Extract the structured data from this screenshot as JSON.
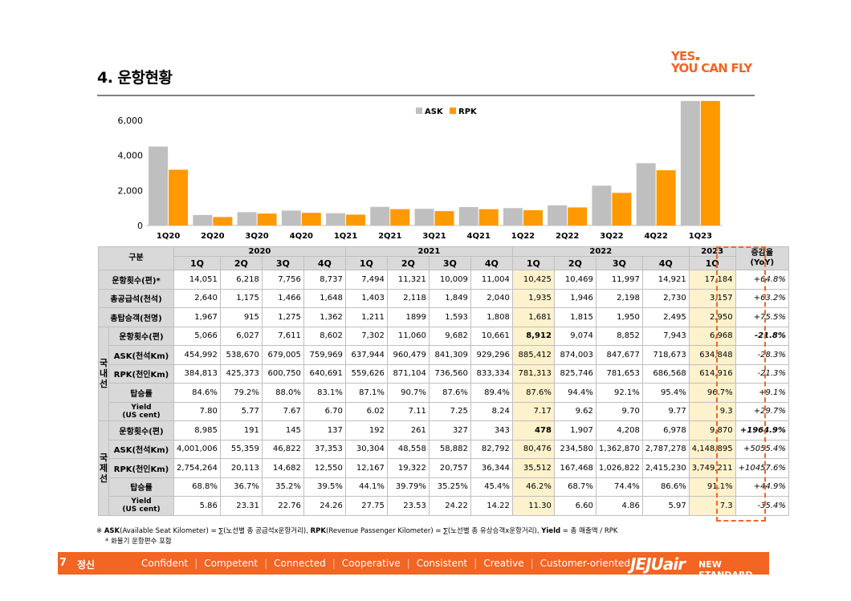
{
  "header": {
    "title": "4. 운항현황",
    "logo_line1": "YES",
    "logo_line2": "YOU CAN FLY"
  },
  "chart_data": {
    "type": "bar",
    "categories": [
      "1Q20",
      "2Q20",
      "3Q20",
      "4Q20",
      "1Q21",
      "2Q21",
      "3Q21",
      "4Q21",
      "1Q22",
      "2Q22",
      "3Q22",
      "4Q22",
      "1Q23"
    ],
    "series": [
      {
        "name": "ASK",
        "color": "#bfbfbf",
        "values": [
          4500,
          600,
          760,
          850,
          700,
          1060,
          950,
          1050,
          990,
          1150,
          2270,
          3550,
          7100
        ]
      },
      {
        "name": "RPK",
        "color": "#ff9900",
        "values": [
          3180,
          480,
          680,
          720,
          620,
          930,
          820,
          930,
          870,
          1030,
          1860,
          3150,
          7100
        ]
      }
    ],
    "yticks": [
      "0",
      "2,000",
      "4,000",
      "6,000"
    ],
    "ylim": [
      0,
      7000
    ],
    "legend": "top-center",
    "grid": false
  },
  "table": {
    "header_label": "구분",
    "yoy_header_line1": "증감율",
    "yoy_header_line2": "(YoY)",
    "years": [
      "2020",
      "2021",
      "2022",
      "2023"
    ],
    "quarters": [
      "1Q",
      "2Q",
      "3Q",
      "4Q",
      "1Q",
      "2Q",
      "3Q",
      "4Q",
      "1Q",
      "2Q",
      "3Q",
      "4Q",
      "1Q"
    ],
    "total_rows": [
      {
        "label": "운항횟수(편)*",
        "values": [
          "14,051",
          "6,218",
          "7,756",
          "8,737",
          "7,494",
          "11,321",
          "10,009",
          "11,004",
          "10,425",
          "10,469",
          "11,997",
          "14,921",
          "17,184"
        ],
        "yoy": "+64.8%"
      },
      {
        "label": "총공급석(천석)",
        "values": [
          "2,640",
          "1,175",
          "1,466",
          "1,648",
          "1,403",
          "2,118",
          "1,849",
          "2,040",
          "1,935",
          "1,946",
          "2,198",
          "2,730",
          "3,157"
        ],
        "yoy": "+63.2%"
      },
      {
        "label": "총탑승객(천명)",
        "values": [
          "1,967",
          "915",
          "1,275",
          "1,362",
          "1,211",
          "1899",
          "1,593",
          "1,808",
          "1,681",
          "1,815",
          "1,950",
          "2,495",
          "2,950"
        ],
        "yoy": "+75.5%"
      }
    ],
    "domestic": {
      "label": "국내선",
      "rows": [
        {
          "label": "운항횟수(편)",
          "values": [
            "5,066",
            "6,027",
            "7,611",
            "8,602",
            "7,302",
            "11,060",
            "9,682",
            "10,661",
            "8,912",
            "9,074",
            "8,852",
            "7,943",
            "6,968"
          ],
          "yoy": "-21.8%",
          "bold_col": 8,
          "yoy_bold": true
        },
        {
          "label": "ASK(천석Km)",
          "values": [
            "454,992",
            "538,670",
            "679,005",
            "759,969",
            "637,944",
            "960,479",
            "841,309",
            "929,296",
            "885,412",
            "874,003",
            "847,677",
            "718,673",
            "634,848"
          ],
          "yoy": "-28.3%"
        },
        {
          "label": "RPK(천인Km)",
          "values": [
            "384,813",
            "425,373",
            "600,750",
            "640,691",
            "559,626",
            "871,104",
            "736,560",
            "833,334",
            "781,313",
            "825,746",
            "781,653",
            "686,568",
            "614,916"
          ],
          "yoy": "-21.3%"
        },
        {
          "label": "탑승률",
          "values": [
            "84.6%",
            "79.2%",
            "88.0%",
            "83.1%",
            "87.1%",
            "90.7%",
            "87.6%",
            "89.4%",
            "87.6%",
            "94.4%",
            "92.1%",
            "95.4%",
            "96.7%"
          ],
          "yoy": "+9.1%"
        },
        {
          "label_line1": "Yield",
          "label_line2": "(US cent)",
          "values": [
            "7.80",
            "5.77",
            "7.67",
            "6.70",
            "6.02",
            "7.11",
            "7.25",
            "8.24",
            "7.17",
            "9.62",
            "9.70",
            "9.77",
            "9.3"
          ],
          "yoy": "+29.7%"
        }
      ]
    },
    "international": {
      "label": "국제선",
      "rows": [
        {
          "label": "운항횟수(편)",
          "values": [
            "8,985",
            "191",
            "145",
            "137",
            "192",
            "261",
            "327",
            "343",
            "478",
            "1,907",
            "4,208",
            "6,978",
            "9,870"
          ],
          "yoy": "+1964.9%",
          "bold_col": 8,
          "yoy_bold": true
        },
        {
          "label": "ASK(천석Km)",
          "values": [
            "4,001,006",
            "55,359",
            "46,822",
            "37,353",
            "30,304",
            "48,558",
            "58,882",
            "82,792",
            "80,476",
            "234,580",
            "1,362,870",
            "2,787,278",
            "4,148,895"
          ],
          "yoy": "+5055.4%"
        },
        {
          "label": "RPK(천인Km)",
          "values": [
            "2,754,264",
            "20,113",
            "14,682",
            "12,550",
            "12,167",
            "19,322",
            "20,757",
            "36,344",
            "35,512",
            "167,468",
            "1,026,822",
            "2,415,230",
            "3,749,211"
          ],
          "yoy": "+10457.6%"
        },
        {
          "label": "탑승률",
          "values": [
            "68.8%",
            "36.7%",
            "35.2%",
            "39.5%",
            "44.1%",
            "39.79%",
            "35.25%",
            "45.4%",
            "46.2%",
            "68.7%",
            "74.4%",
            "86.6%",
            "91.1%"
          ],
          "yoy": "+44.9%"
        },
        {
          "label_line1": "Yield",
          "label_line2": "(US cent)",
          "values": [
            "5.86",
            "23.31",
            "22.76",
            "24.26",
            "27.75",
            "23.53",
            "24.22",
            "14.22",
            "11.30",
            "6.60",
            "4.86",
            "5.97",
            "7.3"
          ],
          "yoy": "-35.4%"
        }
      ]
    }
  },
  "footnotes": {
    "line1_mark": "※",
    "line1_ask": "ASK",
    "line1_ask_text": "(Available Seat Kilometer) = ∑(노선별 총 공급석x운항거리), ",
    "line1_rpk": "RPK",
    "line1_rpk_text": "(Revenue Passenger Kilometer) = ∑(노선별 총 유상승객x운항거리), ",
    "line1_yield": "Yield",
    "line1_yield_text": " = 총 매출액 / RPK",
    "line2": "* 화물기 운항편수 포함"
  },
  "footer": {
    "page_number": "7",
    "main": "정신",
    "slogans": [
      "Confident",
      "Competent",
      "Connected",
      "Cooperative",
      "Consistent",
      "Creative",
      "Customer-oriented"
    ],
    "brand": "JEJUair",
    "standard": "NEW STANDARD"
  }
}
